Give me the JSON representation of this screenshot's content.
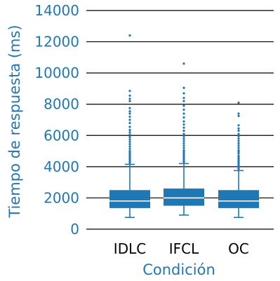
{
  "colors": {
    "accent": "#1f77b4",
    "axis_text": "#1f77b4",
    "category_text": "#000000",
    "grid": "#000000",
    "median": "#ffffff"
  },
  "chart_data": {
    "type": "box",
    "title": "",
    "xlabel": "Condición",
    "ylabel": "Tiempo de respuesta (ms)",
    "ylim": [
      0,
      14000
    ],
    "yticks": [
      0,
      2000,
      4000,
      6000,
      8000,
      10000,
      12000,
      14000
    ],
    "grid": "horizontal",
    "categories": [
      "IDLC",
      "IFCL",
      "OC"
    ],
    "boxes": [
      {
        "name": "IDLC",
        "min": 750,
        "q1": 1350,
        "median": 1800,
        "q3": 2500,
        "max": 4150,
        "outliers": [
          12400,
          8850,
          8550,
          8350,
          8200,
          7750,
          7550,
          7400,
          7200,
          7000,
          6800,
          6550,
          6350,
          6200,
          6050,
          5900,
          5750,
          5600,
          5450,
          5300,
          5150,
          5000,
          4900,
          4800,
          4700,
          4600,
          4500,
          4400,
          4300,
          4250
        ]
      },
      {
        "name": "IFCL",
        "min": 900,
        "q1": 1500,
        "median": 2000,
        "q3": 2600,
        "max": 4200,
        "outliers": [
          10600,
          9050,
          8700,
          8400,
          8200,
          7900,
          7650,
          7400,
          7150,
          6900,
          6700,
          6500,
          6300,
          6100,
          5950,
          5800,
          5650,
          5500,
          5350,
          5200,
          5050,
          4950,
          4850,
          4750,
          4650,
          4550,
          4450,
          4350,
          4300
        ]
      },
      {
        "name": "OC",
        "min": 750,
        "q1": 1350,
        "median": 1800,
        "q3": 2500,
        "max": 3750,
        "outliers": [
          8100,
          7400,
          7250,
          6650,
          6450,
          6300,
          6100,
          5950,
          5800,
          5650,
          5500,
          5350,
          5200,
          5050,
          4950,
          4850,
          4700,
          4600,
          4500,
          4400,
          4300,
          4200,
          4100,
          4000,
          3900,
          3850
        ]
      }
    ]
  }
}
